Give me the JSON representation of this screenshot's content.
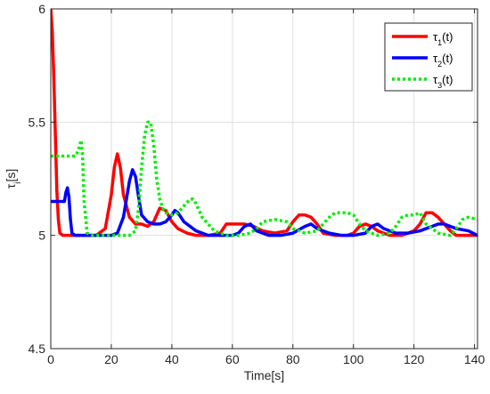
{
  "chart_data": {
    "type": "line",
    "xlabel": "Time[s]",
    "ylabel": "τ_i[s]",
    "xlim": [
      0,
      141
    ],
    "ylim": [
      4.5,
      6.0
    ],
    "xticks": [
      0,
      20,
      40,
      60,
      80,
      100,
      120,
      140
    ],
    "yticks": [
      4.5,
      5.0,
      5.5,
      6.0
    ],
    "xtick_labels": [
      "0",
      "20",
      "40",
      "60",
      "80",
      "100",
      "120",
      "140"
    ],
    "ytick_labels": [
      "4.5",
      "5",
      "5.5",
      "6"
    ],
    "grid": true,
    "legend_position": "top-right",
    "series": [
      {
        "name": "τ1(t)",
        "color": "#ff0000",
        "style": "solid",
        "x": [
          0,
          0.5,
          1,
          1.5,
          2,
          2.5,
          3,
          4,
          6,
          10,
          15,
          18,
          20,
          21,
          22,
          23,
          24,
          26,
          28,
          30,
          32,
          34,
          36,
          38,
          40,
          42,
          45,
          48,
          52,
          56,
          58,
          60,
          64,
          67,
          70,
          74,
          78,
          80,
          82,
          84,
          86,
          88,
          90,
          94,
          98,
          100,
          102,
          104,
          106,
          108,
          110,
          112,
          116,
          120,
          122,
          124,
          126,
          128,
          130,
          132,
          134,
          137,
          141
        ],
        "y": [
          6.0,
          5.9,
          5.7,
          5.45,
          5.2,
          5.07,
          5.01,
          5.0,
          5.0,
          5.0,
          5.0,
          5.03,
          5.18,
          5.3,
          5.36,
          5.3,
          5.18,
          5.08,
          5.05,
          5.05,
          5.04,
          5.06,
          5.12,
          5.11,
          5.06,
          5.03,
          5.01,
          5.0,
          5.0,
          5.01,
          5.05,
          5.05,
          5.05,
          5.04,
          5.02,
          5.01,
          5.02,
          5.06,
          5.09,
          5.09,
          5.08,
          5.05,
          5.01,
          5.0,
          5.0,
          5.01,
          5.04,
          5.05,
          5.04,
          5.02,
          5.01,
          5.0,
          5.0,
          5.02,
          5.05,
          5.1,
          5.1,
          5.08,
          5.05,
          5.02,
          5.0,
          5.0,
          5.0
        ]
      },
      {
        "name": "τ2(t)",
        "color": "#0000ff",
        "style": "solid",
        "x": [
          0,
          4,
          4.5,
          5,
          5.5,
          6,
          6.5,
          7,
          8,
          10,
          15,
          20,
          22,
          24,
          25,
          26,
          27,
          28,
          29,
          30,
          32,
          34,
          36,
          38,
          40,
          41,
          42,
          44,
          48,
          52,
          56,
          60,
          62,
          64,
          66,
          68,
          72,
          76,
          80,
          84,
          86,
          88,
          92,
          96,
          100,
          104,
          106,
          108,
          110,
          114,
          118,
          122,
          126,
          128,
          130,
          134,
          138,
          141
        ],
        "y": [
          5.15,
          5.15,
          5.15,
          5.19,
          5.21,
          5.17,
          5.07,
          5.01,
          5.0,
          5.0,
          5.0,
          5.0,
          5.01,
          5.08,
          5.16,
          5.24,
          5.29,
          5.26,
          5.17,
          5.09,
          5.06,
          5.05,
          5.05,
          5.06,
          5.09,
          5.11,
          5.1,
          5.06,
          5.02,
          5.0,
          5.0,
          5.0,
          5.01,
          5.04,
          5.05,
          5.02,
          5.0,
          5.0,
          5.01,
          5.04,
          5.05,
          5.03,
          5.01,
          5.0,
          5.0,
          5.01,
          5.04,
          5.05,
          5.03,
          5.01,
          5.01,
          5.02,
          5.04,
          5.05,
          5.05,
          5.03,
          5.02,
          5.0
        ]
      },
      {
        "name": "τ3(t)",
        "color": "#00ee00",
        "style": "dotted",
        "x": [
          0,
          8,
          9,
          10,
          10.5,
          11,
          12,
          14,
          20,
          26,
          28,
          29,
          30,
          31,
          32,
          33,
          34,
          35,
          36,
          37,
          38,
          40,
          42,
          44,
          46,
          47,
          48,
          50,
          54,
          58,
          62,
          66,
          68,
          70,
          74,
          78,
          80,
          84,
          88,
          90,
          92,
          94,
          96,
          98,
          100,
          102,
          104,
          108,
          112,
          114,
          116,
          118,
          120,
          122,
          124,
          128,
          132,
          134,
          136,
          138,
          141
        ],
        "y": [
          5.35,
          5.35,
          5.37,
          5.42,
          5.35,
          5.15,
          5.01,
          5.0,
          5.0,
          5.0,
          5.02,
          5.12,
          5.3,
          5.44,
          5.5,
          5.5,
          5.4,
          5.25,
          5.16,
          5.12,
          5.1,
          5.09,
          5.1,
          5.13,
          5.16,
          5.16,
          5.14,
          5.08,
          5.02,
          5.0,
          5.0,
          5.01,
          5.03,
          5.06,
          5.07,
          5.06,
          5.03,
          5.01,
          5.02,
          5.05,
          5.08,
          5.1,
          5.1,
          5.1,
          5.09,
          5.05,
          5.02,
          5.0,
          5.01,
          5.04,
          5.08,
          5.09,
          5.09,
          5.1,
          5.05,
          5.01,
          5.0,
          5.03,
          5.07,
          5.08,
          5.07
        ]
      }
    ]
  }
}
